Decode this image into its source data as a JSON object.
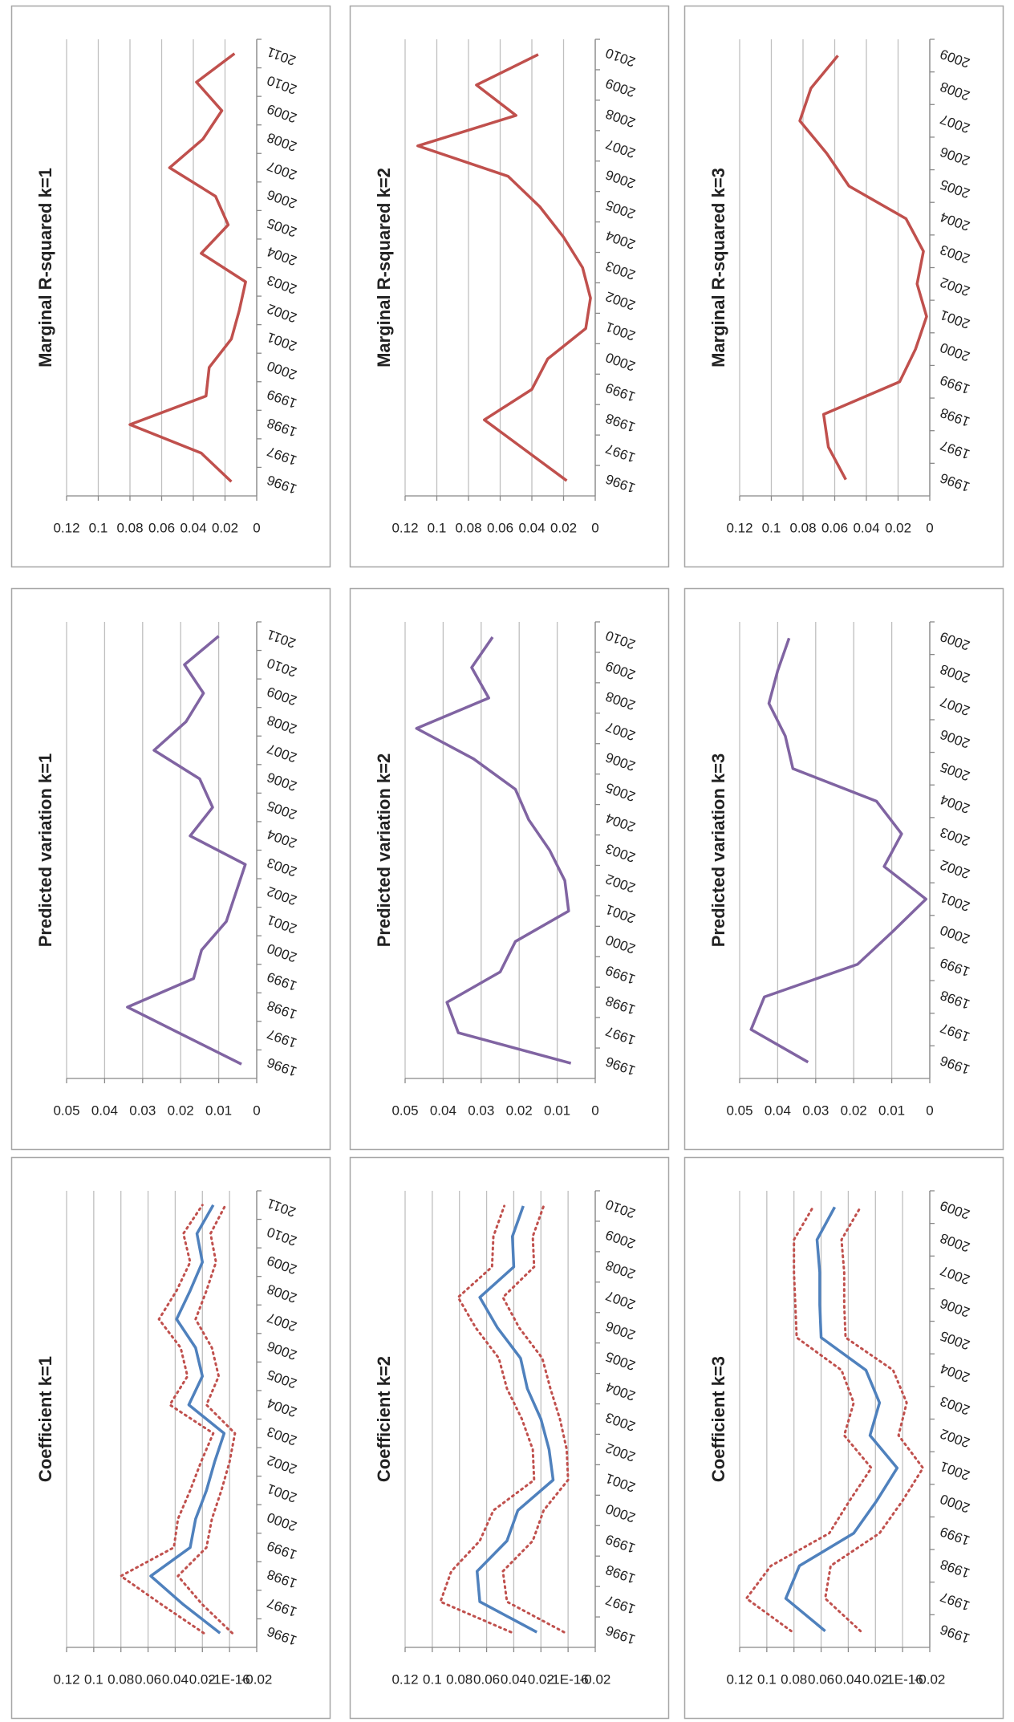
{
  "chart_data": [
    {
      "type": "line",
      "title": "Marginal R-squared k=1",
      "categories": [
        "1996",
        "1997",
        "1998",
        "1999",
        "2000",
        "2001",
        "2002",
        "2003",
        "2004",
        "2005",
        "2006",
        "2007",
        "2008",
        "2009",
        "2010",
        "2011"
      ],
      "ylim": [
        0,
        0.12
      ],
      "yticks": [
        0,
        0.02,
        0.04,
        0.06,
        0.08,
        0.1,
        0.12
      ],
      "grid": true,
      "series": [
        {
          "color": "#c0504d",
          "line_style": "solid",
          "values": [
            0.016,
            0.035,
            0.08,
            0.032,
            0.03,
            0.016,
            0.011,
            0.007,
            0.035,
            0.018,
            0.026,
            0.055,
            0.034,
            0.022,
            0.038,
            0.014
          ]
        }
      ]
    },
    {
      "type": "line",
      "title": "Marginal R-squared k=2",
      "categories": [
        "1996",
        "1997",
        "1998",
        "1999",
        "2000",
        "2001",
        "2002",
        "2003",
        "2004",
        "2005",
        "2006",
        "2007",
        "2008",
        "2009",
        "2010"
      ],
      "ylim": [
        0,
        0.12
      ],
      "yticks": [
        0,
        0.02,
        0.04,
        0.06,
        0.08,
        0.1,
        0.12
      ],
      "grid": true,
      "series": [
        {
          "color": "#c0504d",
          "line_style": "solid",
          "values": [
            0.018,
            0.044,
            0.07,
            0.04,
            0.03,
            0.006,
            0.003,
            0.008,
            0.02,
            0.035,
            0.055,
            0.112,
            0.05,
            0.075,
            0.036
          ]
        }
      ]
    },
    {
      "type": "line",
      "title": "Marginal R-squared k=3",
      "categories": [
        "1996",
        "1997",
        "1998",
        "1999",
        "2000",
        "2001",
        "2002",
        "2003",
        "2004",
        "2005",
        "2006",
        "2007",
        "2008",
        "2009"
      ],
      "ylim": [
        0,
        0.12
      ],
      "yticks": [
        0,
        0.02,
        0.04,
        0.06,
        0.08,
        0.1,
        0.12
      ],
      "grid": true,
      "series": [
        {
          "color": "#c0504d",
          "line_style": "solid",
          "values": [
            0.053,
            0.064,
            0.067,
            0.019,
            0.009,
            0.002,
            0.008,
            0.004,
            0.015,
            0.051,
            0.065,
            0.082,
            0.075,
            0.058
          ]
        }
      ]
    },
    {
      "type": "line",
      "title": "Predicted variation k=1",
      "categories": [
        "1996",
        "1997",
        "1998",
        "1999",
        "2000",
        "2001",
        "2002",
        "2003",
        "2004",
        "2005",
        "2006",
        "2007",
        "2008",
        "2009",
        "2010",
        "2011"
      ],
      "ylim": [
        0,
        0.05
      ],
      "yticks": [
        0,
        0.01,
        0.02,
        0.03,
        0.04,
        0.05
      ],
      "grid": true,
      "series": [
        {
          "color": "#8064a2",
          "line_style": "solid",
          "values": [
            0.004,
            0.019,
            0.034,
            0.0166,
            0.0145,
            0.008,
            0.0055,
            0.003,
            0.0175,
            0.0116,
            0.015,
            0.027,
            0.0186,
            0.014,
            0.019,
            0.01
          ]
        }
      ]
    },
    {
      "type": "line",
      "title": "Predicted variation k=2",
      "categories": [
        "1996",
        "1997",
        "1998",
        "1999",
        "2000",
        "2001",
        "2002",
        "2003",
        "2004",
        "2005",
        "2006",
        "2007",
        "2008",
        "2009",
        "2010"
      ],
      "ylim": [
        0,
        0.05
      ],
      "yticks": [
        0,
        0.01,
        0.02,
        0.03,
        0.04,
        0.05
      ],
      "grid": true,
      "series": [
        {
          "color": "#8064a2",
          "line_style": "solid",
          "values": [
            0.0064,
            0.036,
            0.039,
            0.025,
            0.021,
            0.007,
            0.008,
            0.012,
            0.0175,
            0.021,
            0.032,
            0.047,
            0.028,
            0.0325,
            0.027
          ]
        }
      ]
    },
    {
      "type": "line",
      "title": "Predicted variation k=3",
      "categories": [
        "1996",
        "1997",
        "1998",
        "1999",
        "2000",
        "2001",
        "2002",
        "2003",
        "2004",
        "2005",
        "2006",
        "2007",
        "2008",
        "2009"
      ],
      "ylim": [
        0,
        0.05
      ],
      "yticks": [
        0,
        0.01,
        0.02,
        0.03,
        0.04,
        0.05
      ],
      "grid": true,
      "series": [
        {
          "color": "#8064a2",
          "line_style": "solid",
          "values": [
            0.032,
            0.047,
            0.0435,
            0.019,
            0.0098,
            0.001,
            0.012,
            0.0074,
            0.014,
            0.036,
            0.038,
            0.0423,
            0.04,
            0.037
          ]
        }
      ]
    },
    {
      "type": "line",
      "title": "Coefficient k=1",
      "categories": [
        "1996",
        "1997",
        "1998",
        "1999",
        "2000",
        "2001",
        "2002",
        "2003",
        "2004",
        "2005",
        "2006",
        "2007",
        "2008",
        "2009",
        "2010",
        "2011"
      ],
      "ylim": [
        -0.02,
        0.12
      ],
      "yticks": [
        -0.02,
        {
          "value": -1e-16,
          "label": "-1E-16"
        },
        0.02,
        0.04,
        0.06,
        0.08,
        0.1,
        0.12
      ],
      "grid": true,
      "series": [
        {
          "color": "#4f81bd",
          "line_style": "solid",
          "values": [
            0.007,
            0.034,
            0.058,
            0.029,
            0.025,
            0.017,
            0.011,
            0.004,
            0.03,
            0.02,
            0.025,
            0.039,
            0.029,
            0.02,
            0.024,
            0.012
          ]
        },
        {
          "color": "#c0504d",
          "line_style": "dotted",
          "values": [
            0.019,
            0.05,
            0.08,
            0.041,
            0.038,
            0.029,
            0.021,
            0.012,
            0.044,
            0.031,
            0.036,
            0.052,
            0.039,
            0.029,
            0.034,
            0.02
          ]
        },
        {
          "color": "#c0504d",
          "line_style": "dotted",
          "values": [
            -0.002,
            0.02,
            0.038,
            0.017,
            0.013,
            0.006,
            0.0,
            -0.004,
            0.017,
            0.008,
            0.013,
            0.025,
            0.017,
            0.01,
            0.014,
            0.003
          ]
        }
      ]
    },
    {
      "type": "line",
      "title": "Coefficient k=2",
      "categories": [
        "1996",
        "1997",
        "1998",
        "1999",
        "2000",
        "2001",
        "2002",
        "2003",
        "2004",
        "2005",
        "2006",
        "2007",
        "2008",
        "2009",
        "2010"
      ],
      "ylim": [
        -0.02,
        0.12
      ],
      "yticks": [
        -0.02,
        {
          "value": -1e-16,
          "label": "-1E-16"
        },
        0.02,
        0.04,
        0.06,
        0.08,
        0.1,
        0.12
      ],
      "grid": true,
      "series": [
        {
          "color": "#4f81bd",
          "line_style": "solid",
          "values": [
            0.023,
            0.065,
            0.067,
            0.045,
            0.037,
            0.011,
            0.014,
            0.02,
            0.03,
            0.035,
            0.052,
            0.065,
            0.04,
            0.041,
            0.033
          ]
        },
        {
          "color": "#c0504d",
          "line_style": "dotted",
          "values": [
            0.042,
            0.094,
            0.086,
            0.065,
            0.055,
            0.025,
            0.026,
            0.034,
            0.045,
            0.051,
            0.068,
            0.081,
            0.056,
            0.055,
            0.047
          ]
        },
        {
          "color": "#c0504d",
          "line_style": "dotted",
          "values": [
            0.003,
            0.045,
            0.048,
            0.026,
            0.018,
            0.0,
            0.001,
            0.006,
            0.013,
            0.019,
            0.036,
            0.048,
            0.025,
            0.026,
            0.018
          ]
        }
      ]
    },
    {
      "type": "line",
      "title": "Coefficient k=3",
      "categories": [
        "1996",
        "1997",
        "1998",
        "1999",
        "2000",
        "2001",
        "2002",
        "2003",
        "2004",
        "2005",
        "2006",
        "2007",
        "2008",
        "2009"
      ],
      "ylim": [
        -0.02,
        0.12
      ],
      "yticks": [
        -0.02,
        {
          "value": -1e-16,
          "label": "-1E-16"
        },
        0.02,
        0.04,
        0.06,
        0.08,
        0.1,
        0.12
      ],
      "grid": true,
      "series": [
        {
          "color": "#4f81bd",
          "line_style": "solid",
          "values": [
            0.057,
            0.086,
            0.076,
            0.036,
            0.019,
            0.004,
            0.024,
            0.017,
            0.027,
            0.06,
            0.061,
            0.061,
            0.063,
            0.05
          ]
        },
        {
          "color": "#c0504d",
          "line_style": "dotted",
          "values": [
            0.082,
            0.115,
            0.097,
            0.054,
            0.039,
            0.023,
            0.043,
            0.036,
            0.045,
            0.078,
            0.079,
            0.08,
            0.08,
            0.066
          ]
        },
        {
          "color": "#c0504d",
          "line_style": "dotted",
          "values": [
            0.031,
            0.057,
            0.053,
            0.017,
            0.0,
            -0.015,
            0.003,
            -0.003,
            0.007,
            0.042,
            0.043,
            0.043,
            0.045,
            0.031
          ]
        }
      ]
    }
  ]
}
